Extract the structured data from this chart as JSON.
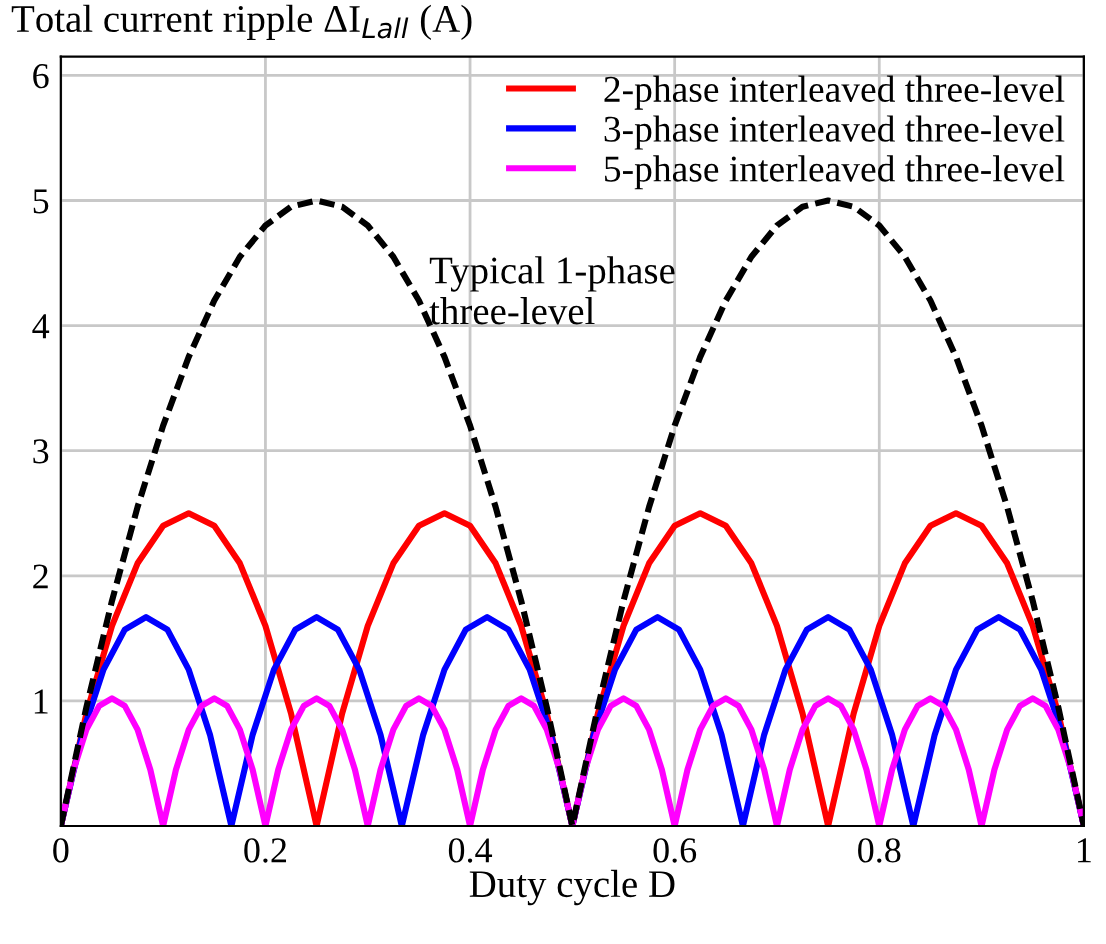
{
  "chart_data": {
    "type": "line",
    "ylabel": "Total current ripple ΔI$_{Lall}$ (A)",
    "xlabel": "Duty cycle D",
    "xlim": [
      0,
      1
    ],
    "xticks": [
      0,
      0.2,
      0.4,
      0.6,
      0.8,
      1
    ],
    "ylim": [
      0,
      6.15
    ],
    "yticks": [
      1,
      2,
      3,
      4,
      5,
      6
    ],
    "grid": true,
    "legend": "top right",
    "marker": "none",
    "annotations": [
      "Typical 1-phase\nthree-level"
    ],
    "series": [
      {
        "name": "2-phase interleaved three-level",
        "color": "#ff0000",
        "x": [
          0,
          0.025,
          0.05,
          0.075,
          0.1,
          0.125,
          0.15,
          0.175,
          0.2,
          0.225,
          0.25,
          0.275,
          0.3,
          0.325,
          0.35,
          0.375,
          0.4,
          0.425,
          0.45,
          0.475,
          0.5,
          0.525,
          0.55,
          0.575,
          0.6,
          0.625,
          0.65,
          0.675,
          0.7,
          0.725,
          0.75,
          0.775,
          0.8,
          0.825,
          0.85,
          0.875,
          0.9,
          0.925,
          0.95,
          0.975,
          1
        ],
        "values": [
          0,
          0.9,
          1.6,
          2.1,
          2.4,
          2.5,
          2.4,
          2.1,
          1.6,
          0.9,
          0,
          0.9,
          1.6,
          2.1,
          2.4,
          2.5,
          2.4,
          2.1,
          1.6,
          0.9,
          0,
          0.9,
          1.6,
          2.1,
          2.4,
          2.5,
          2.4,
          2.1,
          1.6,
          0.9,
          0,
          0.9,
          1.6,
          2.1,
          2.4,
          2.5,
          2.4,
          2.1,
          1.6,
          0.9,
          0
        ]
      },
      {
        "name": "3-phase interleaved three-level",
        "color": "#0000ff",
        "x": [
          0,
          0.0208,
          0.0417,
          0.0625,
          0.0833,
          0.1042,
          0.125,
          0.1458,
          0.1667,
          0.1875,
          0.2083,
          0.2292,
          0.25,
          0.2708,
          0.2917,
          0.3125,
          0.3333,
          0.3542,
          0.375,
          0.3958,
          0.4167,
          0.4375,
          0.4583,
          0.4792,
          0.5,
          0.5208,
          0.5417,
          0.5625,
          0.5833,
          0.6042,
          0.625,
          0.6458,
          0.6667,
          0.6875,
          0.7083,
          0.7292,
          0.75,
          0.7708,
          0.7917,
          0.8125,
          0.8333,
          0.8542,
          0.875,
          0.8958,
          0.9167,
          0.9375,
          0.9583,
          0.9792,
          1
        ],
        "values": [
          0,
          0.73,
          1.25,
          1.57,
          1.67,
          1.57,
          1.25,
          0.73,
          0,
          0.73,
          1.25,
          1.57,
          1.67,
          1.57,
          1.25,
          0.73,
          0,
          0.73,
          1.25,
          1.57,
          1.67,
          1.57,
          1.25,
          0.73,
          0,
          0.73,
          1.25,
          1.57,
          1.67,
          1.57,
          1.25,
          0.73,
          0,
          0.73,
          1.25,
          1.57,
          1.67,
          1.57,
          1.25,
          0.73,
          0,
          0.73,
          1.25,
          1.57,
          1.67,
          1.57,
          1.25,
          0.73,
          0
        ]
      },
      {
        "name": "5-phase interleaved three-level",
        "color": "#ff00ff",
        "x": [
          0,
          0.0125,
          0.025,
          0.0375,
          0.05,
          0.0625,
          0.075,
          0.0875,
          0.1,
          0.1125,
          0.125,
          0.1375,
          0.15,
          0.1625,
          0.175,
          0.1875,
          0.2,
          0.2125,
          0.225,
          0.2375,
          0.25,
          0.2625,
          0.275,
          0.2875,
          0.3,
          0.3125,
          0.325,
          0.3375,
          0.35,
          0.3625,
          0.375,
          0.3875,
          0.4,
          0.4125,
          0.425,
          0.4375,
          0.45,
          0.4625,
          0.475,
          0.4875,
          0.5,
          0.5125,
          0.525,
          0.5375,
          0.55,
          0.5625,
          0.575,
          0.5875,
          0.6,
          0.6125,
          0.625,
          0.6375,
          0.65,
          0.6625,
          0.675,
          0.6875,
          0.7,
          0.7125,
          0.725,
          0.7375,
          0.75,
          0.7625,
          0.775,
          0.7875,
          0.8,
          0.8125,
          0.825,
          0.8375,
          0.85,
          0.8625,
          0.875,
          0.8875,
          0.9,
          0.9125,
          0.925,
          0.9375,
          0.95,
          0.9625,
          0.975,
          0.9875,
          1
        ],
        "values": [
          0,
          0.45,
          0.77,
          0.96,
          1.02,
          0.96,
          0.77,
          0.45,
          0,
          0.45,
          0.77,
          0.96,
          1.02,
          0.96,
          0.77,
          0.45,
          0,
          0.45,
          0.77,
          0.96,
          1.02,
          0.96,
          0.77,
          0.45,
          0,
          0.45,
          0.77,
          0.96,
          1.02,
          0.96,
          0.77,
          0.45,
          0,
          0.45,
          0.77,
          0.96,
          1.02,
          0.96,
          0.77,
          0.45,
          0,
          0.45,
          0.77,
          0.96,
          1.02,
          0.96,
          0.77,
          0.45,
          0,
          0.45,
          0.77,
          0.96,
          1.02,
          0.96,
          0.77,
          0.45,
          0,
          0.45,
          0.77,
          0.96,
          1.02,
          0.96,
          0.77,
          0.45,
          0,
          0.45,
          0.77,
          0.96,
          1.02,
          0.96,
          0.77,
          0.45,
          0,
          0.45,
          0.77,
          0.96,
          1.02,
          0.96,
          0.77,
          0.45,
          0
        ]
      },
      {
        "color": "#000000",
        "line_style": "dashed",
        "x": [
          0,
          0.025,
          0.05,
          0.075,
          0.1,
          0.125,
          0.15,
          0.175,
          0.2,
          0.225,
          0.25,
          0.275,
          0.3,
          0.325,
          0.35,
          0.375,
          0.4,
          0.425,
          0.45,
          0.475,
          0.5,
          0.525,
          0.55,
          0.575,
          0.6,
          0.625,
          0.65,
          0.675,
          0.7,
          0.725,
          0.75,
          0.775,
          0.8,
          0.825,
          0.85,
          0.875,
          0.9,
          0.925,
          0.95,
          0.975,
          1
        ],
        "values": [
          0,
          0.95,
          1.8,
          2.55,
          3.2,
          3.75,
          4.2,
          4.55,
          4.8,
          4.95,
          5.0,
          4.95,
          4.8,
          4.55,
          4.2,
          3.75,
          3.2,
          2.55,
          1.8,
          0.95,
          0,
          0.95,
          1.8,
          2.55,
          3.2,
          3.75,
          4.2,
          4.55,
          4.8,
          4.95,
          5.0,
          4.95,
          4.8,
          4.55,
          4.2,
          3.75,
          3.2,
          2.55,
          1.8,
          0.95,
          0
        ]
      }
    ]
  }
}
